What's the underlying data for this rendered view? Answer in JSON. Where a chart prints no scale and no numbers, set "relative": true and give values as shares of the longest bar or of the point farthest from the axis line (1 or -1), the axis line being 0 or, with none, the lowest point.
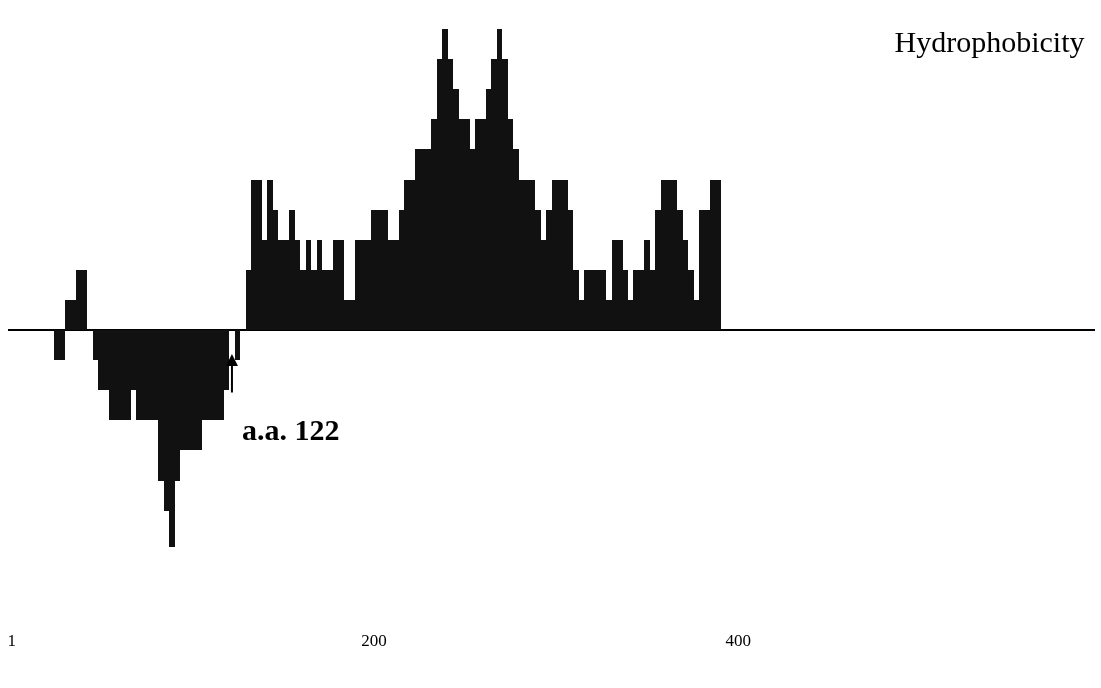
{
  "chart_data": {
    "type": "bar",
    "title": "Hydrophobicity",
    "relative": true,
    "color": "#111111",
    "grid": false,
    "x": [
      26,
      29,
      32,
      35,
      38,
      41,
      44,
      47,
      50,
      53,
      56,
      59,
      62,
      65,
      68,
      71,
      74,
      77,
      80,
      83,
      86,
      89,
      92,
      95,
      98,
      101,
      104,
      107,
      110,
      113,
      116,
      119,
      122,
      125,
      128,
      131,
      134,
      137,
      140,
      143,
      146,
      149,
      152,
      155,
      158,
      161,
      164,
      167,
      170,
      173,
      176,
      179,
      182,
      185,
      188,
      191,
      194,
      197,
      200,
      203,
      206,
      209,
      212,
      215,
      218,
      221,
      224,
      227,
      230,
      233,
      236,
      239,
      242,
      245,
      248,
      251,
      254,
      257,
      260,
      263,
      266,
      269,
      272,
      275,
      278,
      281,
      284,
      287,
      290,
      293,
      296,
      299,
      302,
      305,
      308,
      311,
      314,
      317,
      320,
      323,
      326,
      329,
      332,
      335,
      338,
      341,
      344,
      347,
      350,
      353,
      356,
      359,
      362,
      365,
      368,
      371,
      374,
      377,
      380,
      383,
      386,
      389
    ],
    "values": [
      -0.1,
      -0.1,
      0.1,
      0.1,
      0.2,
      0.2,
      null,
      -0.1,
      -0.2,
      -0.2,
      -0.3,
      -0.3,
      -0.3,
      -0.3,
      -0.2,
      -0.3,
      -0.3,
      -0.3,
      -0.3,
      -0.5,
      -0.6,
      -0.72,
      -0.5,
      -0.4,
      -0.4,
      -0.4,
      -0.4,
      -0.3,
      -0.3,
      -0.3,
      -0.3,
      -0.2,
      null,
      -0.1,
      null,
      0.2,
      0.5,
      0.5,
      0.3,
      0.5,
      0.4,
      0.3,
      0.3,
      0.4,
      0.3,
      0.2,
      0.3,
      0.2,
      0.3,
      0.2,
      0.2,
      0.3,
      0.3,
      0.1,
      0.1,
      0.3,
      0.3,
      0.3,
      0.4,
      0.4,
      0.4,
      0.3,
      0.3,
      0.4,
      0.5,
      0.5,
      0.6,
      0.6,
      0.6,
      0.7,
      0.9,
      1.0,
      0.9,
      0.8,
      0.7,
      0.7,
      0.6,
      0.7,
      0.7,
      0.8,
      0.9,
      1.0,
      0.9,
      0.7,
      0.6,
      0.5,
      0.5,
      0.5,
      0.4,
      0.3,
      0.4,
      0.5,
      0.5,
      0.5,
      0.4,
      0.2,
      0.1,
      0.2,
      0.2,
      0.2,
      0.2,
      0.1,
      0.3,
      0.3,
      0.2,
      0.1,
      0.2,
      0.2,
      0.3,
      0.2,
      0.4,
      0.5,
      0.5,
      0.5,
      0.4,
      0.3,
      0.2,
      0.1,
      0.4,
      0.4,
      0.5,
      0.5
    ],
    "xlim": [
      -1,
      596
    ],
    "xticks": [
      1,
      200,
      400
    ],
    "annotations": [
      {
        "text": "a.a. 122",
        "x": 122,
        "y": -0.08
      }
    ]
  }
}
